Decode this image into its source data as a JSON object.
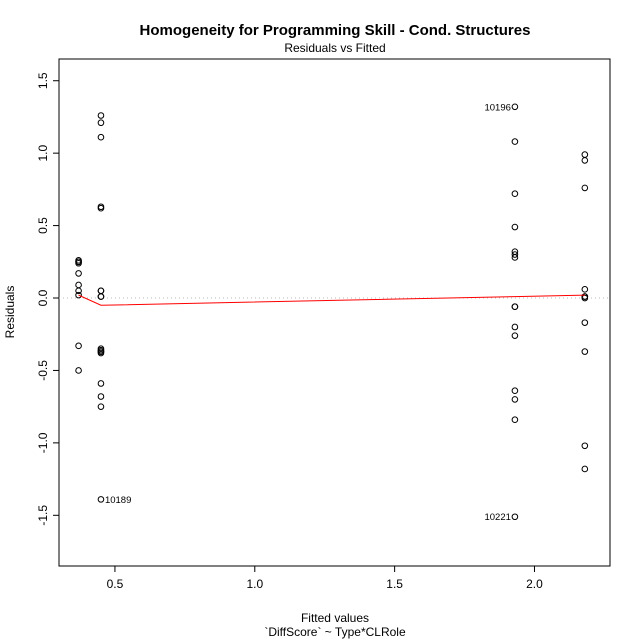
{
  "chart_data": {
    "type": "scatter",
    "title": "Homogeneity for Programming Skill - Cond. Structures",
    "subtitle": "Residuals vs Fitted",
    "xlabel": "Fitted values",
    "xlabel2": "`DiffScore` ~ Type*CLRole",
    "ylabel": "Residuals",
    "xlim": [
      0.3,
      2.27
    ],
    "ylim": [
      -1.85,
      1.65
    ],
    "xticks": [
      0.5,
      1.0,
      1.5,
      2.0
    ],
    "xtick_labels": [
      "0.5",
      "1.0",
      "1.5",
      "2.0"
    ],
    "yticks": [
      -1.5,
      -1.0,
      -0.5,
      0.0,
      0.5,
      1.0,
      1.5
    ],
    "ytick_labels": [
      "-1.5",
      "-1.0",
      "-0.5",
      "0.0",
      "0.5",
      "1.0",
      "1.5"
    ],
    "grid": false,
    "zero_line_color": "#bbbbbb",
    "smooth_color": "#ff0000",
    "series": [
      {
        "x": [
          0.37,
          0.37,
          0.37,
          0.37,
          0.37,
          0.37,
          0.37,
          0.37,
          0.37,
          0.37,
          0.45,
          0.45,
          0.45,
          0.45,
          0.45,
          0.45,
          0.45,
          0.45,
          0.45,
          0.45,
          0.45,
          0.45,
          0.45,
          0.45,
          0.45,
          0.45,
          0.45,
          0.45,
          1.93,
          1.93,
          1.93,
          1.93,
          1.93,
          1.93,
          1.93,
          1.93,
          1.93,
          1.93,
          1.93,
          1.93,
          1.93,
          1.93,
          1.93,
          2.18,
          2.18,
          2.18,
          2.18,
          2.18,
          2.18,
          2.18,
          2.18,
          2.18,
          2.18,
          2.18
        ],
        "y": [
          0.26,
          0.24,
          0.17,
          0.09,
          0.05,
          0.02,
          -0.33,
          -0.5,
          0.25,
          0.25,
          1.26,
          1.21,
          1.11,
          0.63,
          0.62,
          0.05,
          0.01,
          -0.35,
          -0.37,
          -0.38,
          -0.59,
          -0.68,
          -0.75,
          -1.39,
          0.05,
          0.01,
          -0.36,
          -0.37,
          1.32,
          1.08,
          0.72,
          0.49,
          0.32,
          0.28,
          -0.06,
          -0.2,
          -0.26,
          -0.64,
          -0.7,
          -0.84,
          -1.51,
          0.3,
          -0.06,
          0.99,
          0.95,
          0.76,
          0.06,
          0.01,
          0.0,
          -0.17,
          -0.37,
          -1.02,
          -1.18,
          0.01
        ]
      }
    ],
    "smooth": {
      "x": [
        0.37,
        0.45,
        1.93,
        2.18
      ],
      "y": [
        0.02,
        -0.05,
        0.01,
        0.02
      ]
    },
    "labels": [
      {
        "text": "10196",
        "x": 1.93,
        "y": 1.32,
        "side": "left"
      },
      {
        "text": "10189",
        "x": 0.45,
        "y": -1.39,
        "side": "right"
      },
      {
        "text": "10221",
        "x": 1.93,
        "y": -1.51,
        "side": "left"
      }
    ]
  }
}
